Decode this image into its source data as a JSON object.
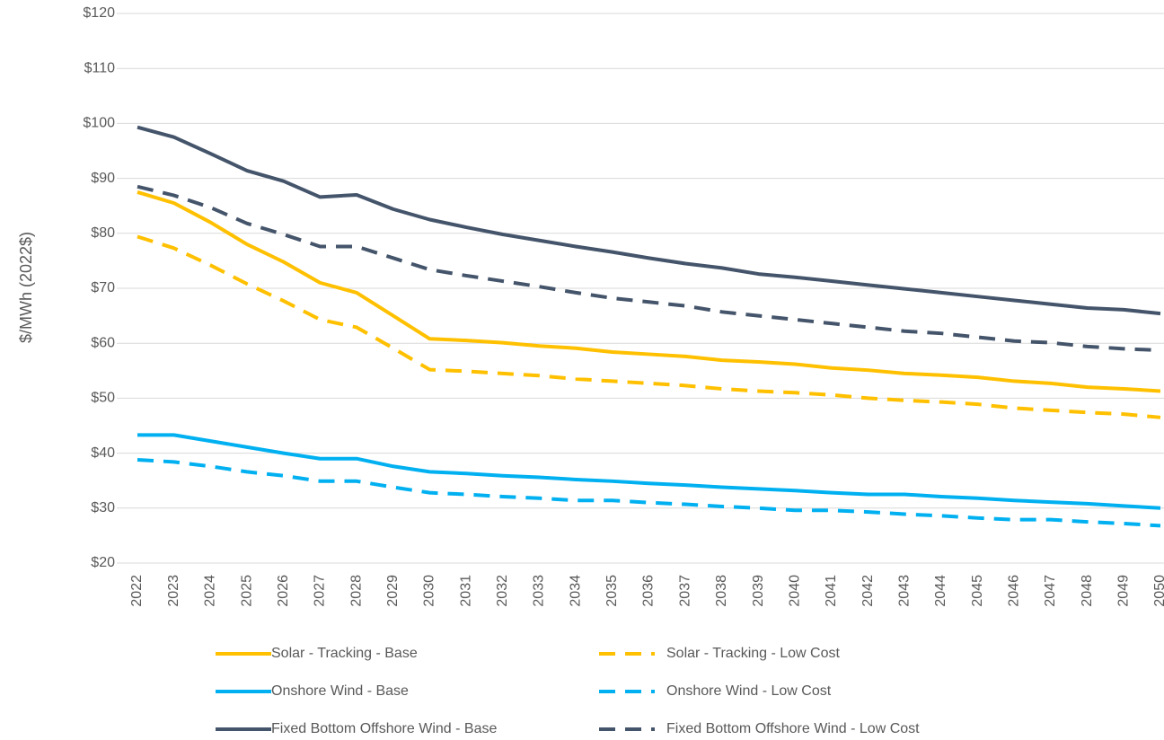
{
  "chart_data": {
    "type": "line",
    "y_label": "$/MWh (2022$)",
    "categories": [
      "2022",
      "2023",
      "2024",
      "2025",
      "2026",
      "2027",
      "2028",
      "2029",
      "2030",
      "2031",
      "2032",
      "2033",
      "2034",
      "2035",
      "2036",
      "2037",
      "2038",
      "2039",
      "2040",
      "2041",
      "2042",
      "2043",
      "2044",
      "2045",
      "2046",
      "2047",
      "2048",
      "2049",
      "2050"
    ],
    "series": [
      {
        "name": "Solar - Tracking - Base",
        "color": "#FFC000",
        "dashed": false,
        "values": [
          87.5,
          85.5,
          82,
          78,
          74.8,
          71,
          69.2,
          65,
          60.8,
          60.5,
          60.1,
          59.5,
          59.1,
          58.4,
          58,
          57.6,
          56.9,
          56.6,
          56.2,
          55.5,
          55.1,
          54.5,
          54.2,
          53.8,
          53.1,
          52.7,
          52,
          51.7,
          51.3
        ]
      },
      {
        "name": "Solar - Tracking - Low Cost",
        "color": "#FFC000",
        "dashed": true,
        "values": [
          79.4,
          77.3,
          74.2,
          70.8,
          67.7,
          64.3,
          62.9,
          59.1,
          55.2,
          54.9,
          54.5,
          54.1,
          53.5,
          53.1,
          52.7,
          52.3,
          51.7,
          51.3,
          51,
          50.6,
          50,
          49.6,
          49.3,
          48.9,
          48.2,
          47.8,
          47.4,
          47.1,
          46.5
        ]
      },
      {
        "name": "Onshore Wind - Base",
        "color": "#00B0F0",
        "dashed": false,
        "values": [
          43.3,
          43.3,
          42.2,
          41.1,
          40,
          39,
          39,
          37.6,
          36.6,
          36.3,
          35.9,
          35.6,
          35.2,
          34.9,
          34.5,
          34.2,
          33.8,
          33.5,
          33.2,
          32.8,
          32.5,
          32.5,
          32.1,
          31.8,
          31.4,
          31.1,
          30.8,
          30.4,
          30
        ]
      },
      {
        "name": "Onshore Wind - Low Cost",
        "color": "#00B0F0",
        "dashed": true,
        "values": [
          38.8,
          38.4,
          37.6,
          36.6,
          35.9,
          34.9,
          34.9,
          33.8,
          32.8,
          32.5,
          32.1,
          31.8,
          31.4,
          31.4,
          31,
          30.7,
          30.3,
          30,
          29.6,
          29.6,
          29.3,
          28.9,
          28.6,
          28.2,
          27.9,
          27.9,
          27.5,
          27.2,
          26.8
        ]
      },
      {
        "name": "Fixed Bottom Offshore Wind - Base",
        "color": "#44546A",
        "dashed": false,
        "values": [
          99.3,
          97.5,
          94.5,
          91.4,
          89.5,
          86.6,
          87,
          84.4,
          82.5,
          81.1,
          79.8,
          78.7,
          77.6,
          76.6,
          75.5,
          74.5,
          73.7,
          72.6,
          72,
          71.3,
          70.6,
          69.9,
          69.2,
          68.5,
          67.8,
          67.1,
          66.4,
          66.1,
          65.4
        ]
      },
      {
        "name": "Fixed Bottom Offshore Wind - Low Cost",
        "color": "#44546A",
        "dashed": true,
        "values": [
          88.5,
          86.9,
          84.7,
          81.8,
          79.8,
          77.6,
          77.6,
          75.5,
          73.4,
          72.3,
          71.3,
          70.3,
          69.2,
          68.2,
          67.5,
          66.8,
          65.7,
          65,
          64.3,
          63.6,
          62.9,
          62.2,
          61.8,
          61.1,
          60.4,
          60.1,
          59.4,
          59,
          58.7
        ]
      }
    ],
    "ylim": [
      20,
      120
    ],
    "yticks": [
      {
        "value": 20,
        "label": "$20"
      },
      {
        "value": 30,
        "label": "$30"
      },
      {
        "value": 40,
        "label": "$40"
      },
      {
        "value": 50,
        "label": "$50"
      },
      {
        "value": 60,
        "label": "$60"
      },
      {
        "value": 70,
        "label": "$70"
      },
      {
        "value": 80,
        "label": "$80"
      },
      {
        "value": 90,
        "label": "$90"
      },
      {
        "value": 100,
        "label": "$100"
      },
      {
        "value": 110,
        "label": "$110"
      },
      {
        "value": 120,
        "label": "$120"
      }
    ],
    "grid": true,
    "legend": "bottom"
  }
}
